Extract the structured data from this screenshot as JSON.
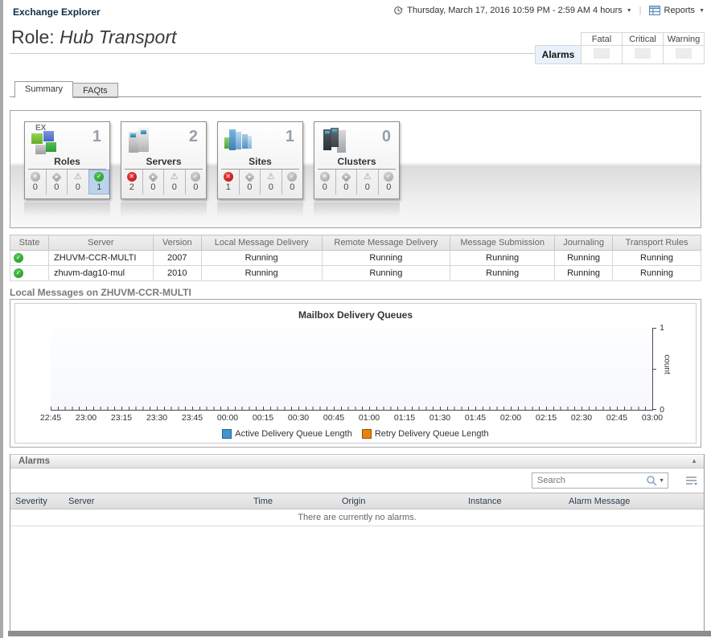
{
  "header": {
    "breadcrumb": "Exchange Explorer",
    "timerange_label": "Thursday, March 17, 2016 10:59 PM - 2:59 AM 4 hours",
    "reports_label": "Reports"
  },
  "page_title": {
    "prefix": "Role: ",
    "role_name": "Hub Transport"
  },
  "alarm_summary": {
    "row_label": "Alarms",
    "columns": [
      "Fatal",
      "Critical",
      "Warning"
    ]
  },
  "tabs": {
    "summary": "Summary",
    "faqts": "FAQts"
  },
  "tiles": [
    {
      "name": "Roles",
      "count": "1",
      "icon": "roles-icon",
      "statuses": [
        {
          "kind": "fatal",
          "count": "0",
          "variant": "gray",
          "highlight": false
        },
        {
          "kind": "critical",
          "count": "0",
          "variant": "gray",
          "highlight": false
        },
        {
          "kind": "warning",
          "count": "0",
          "variant": "gray",
          "highlight": false
        },
        {
          "kind": "normal",
          "count": "1",
          "variant": "green",
          "highlight": true
        }
      ]
    },
    {
      "name": "Servers",
      "count": "2",
      "icon": "servers-icon",
      "statuses": [
        {
          "kind": "fatal",
          "count": "2",
          "variant": "red",
          "highlight": false
        },
        {
          "kind": "critical",
          "count": "0",
          "variant": "gray",
          "highlight": false
        },
        {
          "kind": "warning",
          "count": "0",
          "variant": "gray",
          "highlight": false
        },
        {
          "kind": "normal",
          "count": "0",
          "variant": "gray",
          "highlight": false
        }
      ]
    },
    {
      "name": "Sites",
      "count": "1",
      "icon": "sites-icon",
      "statuses": [
        {
          "kind": "fatal",
          "count": "1",
          "variant": "red",
          "highlight": false
        },
        {
          "kind": "critical",
          "count": "0",
          "variant": "gray",
          "highlight": false
        },
        {
          "kind": "warning",
          "count": "0",
          "variant": "gray",
          "highlight": false
        },
        {
          "kind": "normal",
          "count": "0",
          "variant": "gray",
          "highlight": false
        }
      ]
    },
    {
      "name": "Clusters",
      "count": "0",
      "icon": "clusters-icon",
      "statuses": [
        {
          "kind": "fatal",
          "count": "0",
          "variant": "gray",
          "highlight": false
        },
        {
          "kind": "critical",
          "count": "0",
          "variant": "gray",
          "highlight": false
        },
        {
          "kind": "warning",
          "count": "0",
          "variant": "gray",
          "highlight": false
        },
        {
          "kind": "normal",
          "count": "0",
          "variant": "gray",
          "highlight": false
        }
      ]
    }
  ],
  "server_table": {
    "columns": [
      "State",
      "Server",
      "Version",
      "Local Message Delivery",
      "Remote Message Delivery",
      "Message Submission",
      "Journaling",
      "Transport Rules"
    ],
    "rows": [
      {
        "state": "normal",
        "server": "ZHUVM-CCR-MULTI",
        "version": "2007",
        "values": [
          "Running",
          "Running",
          "Running",
          "Running",
          "Running"
        ]
      },
      {
        "state": "normal",
        "server": "zhuvm-dag10-mul",
        "version": "2010",
        "values": [
          "Running",
          "Running",
          "Running",
          "Running",
          "Running"
        ]
      }
    ]
  },
  "local_messages": {
    "heading": "Local Messages on ZHUVM-CCR-MULTI"
  },
  "chart_data": {
    "type": "line",
    "title": "Mailbox Delivery Queues",
    "ylabel": "count",
    "ylim": [
      0,
      1
    ],
    "x_ticklabels": [
      "22:45",
      "23:00",
      "23:15",
      "23:30",
      "23:45",
      "00:00",
      "00:15",
      "00:30",
      "00:45",
      "01:00",
      "01:15",
      "01:30",
      "01:45",
      "02:00",
      "02:15",
      "02:30",
      "02:45",
      "03:00"
    ],
    "series": [
      {
        "name": "Active Delivery Queue Length",
        "color": "#3E97D1",
        "values": []
      },
      {
        "name": "Retry Delivery Queue Length",
        "color": "#E8820C",
        "values": []
      }
    ],
    "legend_position": "bottom",
    "grid": false
  },
  "alarms_panel": {
    "title": "Alarms",
    "search_placeholder": "Search",
    "columns": [
      "Severity",
      "Server",
      "Time",
      "Origin",
      "Instance",
      "Alarm Message"
    ],
    "empty_message": "There are currently no alarms."
  }
}
